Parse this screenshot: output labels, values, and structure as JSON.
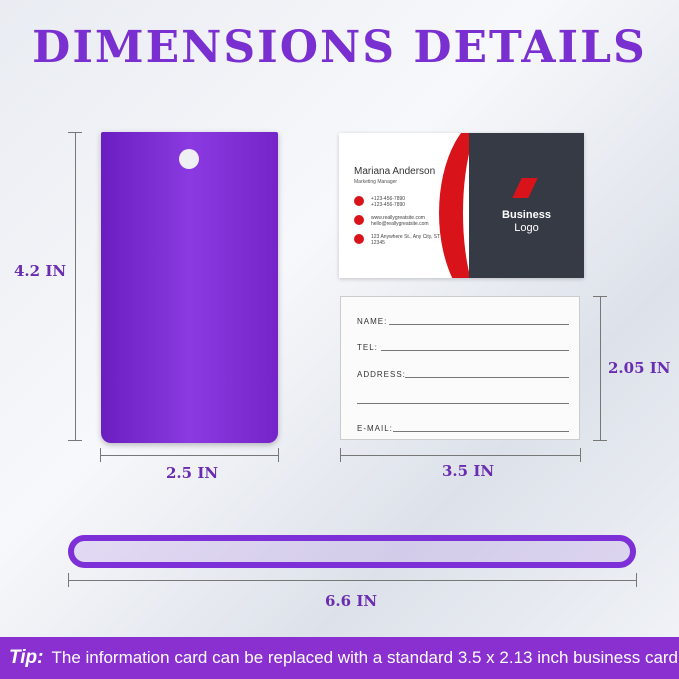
{
  "title": "DIMENSIONS DETAILS",
  "dimensions": {
    "tag_height": "4.2 IN",
    "tag_width": "2.5 IN",
    "card_height": "2.05 IN",
    "card_width": "3.5 IN",
    "strap_length": "6.6 IN"
  },
  "business_card": {
    "name": "Mariana Anderson",
    "role": "Marketing Manager",
    "phone1": "+123-456-7890",
    "phone2": "+123-456-7890",
    "web": "www.reallygreatsite.com",
    "email": "hello@reallygreatsite.com",
    "address1": "123 Anywhere St., Any City, ST",
    "address2": "12345",
    "logo_line1": "Business",
    "logo_line2": "Logo"
  },
  "info_card": {
    "fields": [
      "NAME:",
      "TEL:",
      "ADDRESS:",
      "E-MAIL:"
    ]
  },
  "tip": {
    "label": "Tip:",
    "text": "The information card can be replaced with a standard 3.5 x 2.13 inch business card"
  },
  "colors": {
    "accent": "#7a2fd0",
    "tip_bar": "#8a2fd0",
    "card_red": "#d8141a"
  }
}
